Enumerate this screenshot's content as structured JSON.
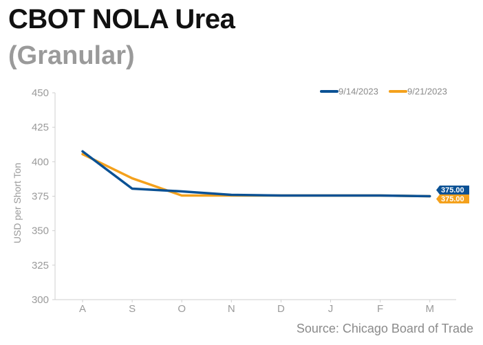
{
  "header": {
    "title": "CBOT NOLA Urea",
    "subtitle": "(Granular)"
  },
  "footer": {
    "source": "Source: Chicago Board of Trade"
  },
  "chart_data": {
    "type": "line",
    "title": "CBOT NOLA Urea",
    "subtitle": "(Granular)",
    "xlabel": "",
    "ylabel": "USD per Short Ton",
    "categories": [
      "A",
      "S",
      "O",
      "N",
      "D",
      "J",
      "F",
      "M"
    ],
    "ylim": [
      300,
      450
    ],
    "yticks": [
      300,
      325,
      350,
      375,
      400,
      425,
      450
    ],
    "grid": false,
    "legend_position": "top-right",
    "series": [
      {
        "name": "9/14/2023",
        "color": "#0a5194",
        "values": [
          407.5,
          380.5,
          378.5,
          376,
          375.5,
          375.5,
          375.5,
          375
        ],
        "end_label": "375.00"
      },
      {
        "name": "9/21/2023",
        "color": "#f4a11c",
        "values": [
          405.5,
          388,
          375.5,
          375.5,
          375.5,
          375.5,
          375.5,
          375
        ],
        "end_label": "375.00"
      }
    ]
  }
}
